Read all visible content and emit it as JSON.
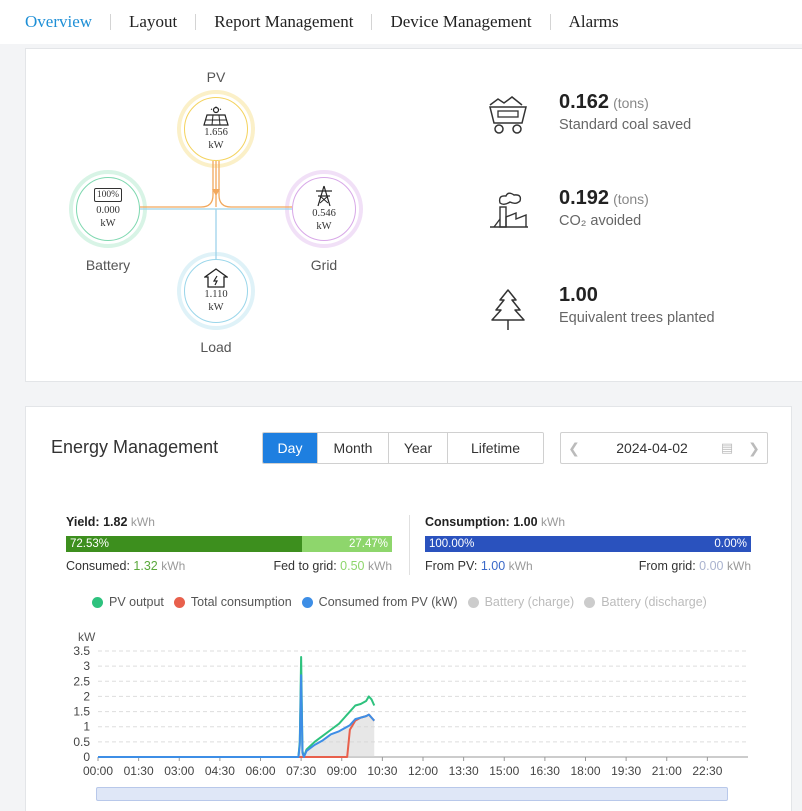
{
  "nav": {
    "items": [
      {
        "label": "Overview",
        "active": true
      },
      {
        "label": "Layout",
        "active": false
      },
      {
        "label": "Report Management",
        "active": false
      },
      {
        "label": "Device Management",
        "active": false
      },
      {
        "label": "Alarms",
        "active": false
      }
    ]
  },
  "flow": {
    "pv": {
      "label": "PV",
      "value": "1.656",
      "unit": "kW",
      "icon": "solar-panel-icon",
      "color": "#f4d35e"
    },
    "battery": {
      "label": "Battery",
      "value": "0.000",
      "unit": "kW",
      "icon_text": "100%",
      "icon": "battery-icon",
      "color": "#7fd8b0"
    },
    "grid": {
      "label": "Grid",
      "value": "0.546",
      "unit": "kW",
      "icon": "power-tower-icon",
      "color": "#d8a8e8"
    },
    "load": {
      "label": "Load",
      "value": "1.110",
      "unit": "kW",
      "icon": "house-icon",
      "color": "#9ad6ea"
    }
  },
  "stats": [
    {
      "value": "0.162",
      "unit": "(tons)",
      "desc": "Standard coal saved",
      "icon": "coal-cart-icon"
    },
    {
      "value": "0.192",
      "unit": "(tons)",
      "desc": "CO₂ avoided",
      "icon": "factory-icon"
    },
    {
      "value": "1.00",
      "unit": "",
      "desc": "Equivalent trees planted",
      "icon": "tree-icon"
    }
  ],
  "energy": {
    "title": "Energy Management",
    "tabs": [
      {
        "label": "Day",
        "active": true
      },
      {
        "label": "Month",
        "active": false
      },
      {
        "label": "Year",
        "active": false
      },
      {
        "label": "Lifetime",
        "active": false
      }
    ],
    "date": "2024-04-02",
    "yield": {
      "label": "Yield:",
      "value": "1.82",
      "unit": "kWh",
      "consumed_pct": "72.53%",
      "fed_pct": "27.47%",
      "consumed_share": 0.7253,
      "consumed_label": "Consumed:",
      "consumed_value": "1.32",
      "consumed_unit": "kWh",
      "fed_label": "Fed to grid:",
      "fed_value": "0.50",
      "fed_unit": "kWh",
      "colors": {
        "consumed": "#3d8f1e",
        "fed": "#8ed66c"
      }
    },
    "consumption": {
      "label": "Consumption:",
      "value": "1.00",
      "unit": "kWh",
      "pv_pct": "100.00%",
      "grid_pct": "0.00%",
      "pv_share": 1.0,
      "pv_label": "From PV:",
      "pv_value": "1.00",
      "pv_unit": "kWh",
      "grid_label": "From grid:",
      "grid_value": "0.00",
      "grid_unit": "kWh",
      "colors": {
        "pv": "#2a52be"
      }
    }
  },
  "chart_data": {
    "type": "line",
    "ylabel": "kW",
    "ylim": [
      0,
      3.5
    ],
    "yticks": [
      0,
      0.5,
      1,
      1.5,
      2,
      2.5,
      3,
      3.5
    ],
    "xtick_labels": [
      "00:00",
      "01:30",
      "03:00",
      "04:30",
      "06:00",
      "07:30",
      "09:00",
      "10:30",
      "12:00",
      "13:30",
      "15:00",
      "16:30",
      "18:00",
      "19:30",
      "21:00",
      "22:30"
    ],
    "x_hours_range": [
      0,
      24
    ],
    "legend": [
      {
        "name": "PV output",
        "color": "#2ec27e",
        "active": true
      },
      {
        "name": "Total consumption",
        "color": "#e8604c",
        "active": true
      },
      {
        "name": "Consumed from PV (kW)",
        "color": "#3d8ee6",
        "active": true
      },
      {
        "name": "Battery (charge)",
        "color": "#cccccc",
        "active": false
      },
      {
        "name": "Battery (discharge)",
        "color": "#cccccc",
        "active": false
      }
    ],
    "series": [
      {
        "name": "PV output",
        "color": "#2ec27e",
        "x": [
          0,
          7.4,
          7.45,
          7.5,
          7.55,
          7.6,
          7.7,
          8.0,
          8.3,
          8.6,
          8.9,
          9.1,
          9.2,
          9.3,
          9.5,
          9.7,
          9.9,
          10.0,
          10.1,
          10.2
        ],
        "y": [
          0,
          0,
          0.5,
          3.3,
          0.2,
          0,
          0.25,
          0.5,
          0.7,
          0.9,
          1.1,
          1.3,
          1.4,
          1.5,
          1.7,
          1.75,
          1.85,
          2.0,
          1.9,
          1.7
        ]
      },
      {
        "name": "Total consumption",
        "color": "#e8604c",
        "x": [
          0,
          7.4,
          7.5,
          7.6,
          9.2,
          9.3,
          9.5,
          9.7,
          9.9,
          10.0,
          10.1,
          10.2
        ],
        "y": [
          0,
          0,
          0,
          0,
          0,
          0.9,
          1.2,
          1.3,
          1.35,
          1.4,
          1.3,
          1.2
        ]
      },
      {
        "name": "Consumed from PV (kW)",
        "color": "#3d8ee6",
        "x": [
          0,
          7.4,
          7.45,
          7.5,
          7.55,
          7.6,
          7.7,
          8.0,
          8.3,
          8.6,
          8.9,
          9.1,
          9.2,
          9.3,
          9.5,
          9.7,
          9.9,
          10.0,
          10.1,
          10.2
        ],
        "y": [
          0,
          0,
          0.4,
          2.7,
          0.15,
          0,
          0.2,
          0.4,
          0.55,
          0.75,
          0.85,
          0.95,
          1.0,
          1.05,
          1.25,
          1.3,
          1.35,
          1.4,
          1.3,
          1.2
        ]
      }
    ]
  }
}
